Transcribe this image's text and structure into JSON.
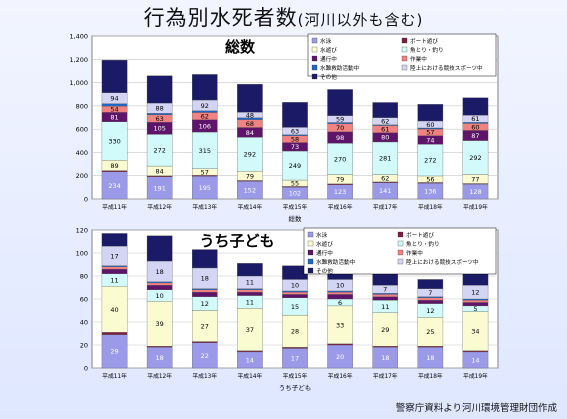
{
  "slide": {
    "title_main": "行為別水死者数",
    "title_sub": "(河川以外も含む)",
    "source": "警察庁資料より河川環境管理財団作成"
  },
  "series_meta": [
    {
      "name": "水泳",
      "color": "#9a9ae8"
    },
    {
      "name": "ボート遊び",
      "color": "#7a1e3e"
    },
    {
      "name": "水遊び",
      "color": "#fbfbd2"
    },
    {
      "name": "魚とり・釣り",
      "color": "#d2fafa"
    },
    {
      "name": "通行中",
      "color": "#5e1469"
    },
    {
      "name": "作業中",
      "color": "#f08282"
    },
    {
      "name": "水難救助活動中",
      "color": "#1e66c8"
    },
    {
      "name": "陸上における競技スポーツ中",
      "color": "#d4d4f4"
    },
    {
      "name": "その他",
      "color": "#1a1a66"
    }
  ],
  "chart_data": [
    {
      "type": "bar",
      "stacked": true,
      "title": "総数",
      "xlabel": "総数",
      "ylim": [
        0,
        1400
      ],
      "yticks": [
        "0",
        "200",
        "400",
        "600",
        "800",
        "1,000",
        "1,200",
        "1,400"
      ],
      "categories": [
        "平成11年",
        "平成12年",
        "平成13年",
        "平成14年",
        "平成15年",
        "平成16年",
        "平成17年",
        "平成18年",
        "平成19年"
      ],
      "series": [
        {
          "name": "水泳",
          "values": [
            234,
            191,
            195,
            152,
            102,
            123,
            141,
            136,
            128
          ]
        },
        {
          "name": "ボート遊び",
          "values": [
            10,
            8,
            8,
            7,
            6,
            7,
            6,
            6,
            5
          ]
        },
        {
          "name": "水遊び",
          "values": [
            89,
            84,
            57,
            79,
            55,
            79,
            62,
            56,
            77
          ]
        },
        {
          "name": "魚とり・釣り",
          "values": [
            330,
            272,
            315,
            292,
            249,
            270,
            281,
            272,
            292
          ]
        },
        {
          "name": "通行中",
          "values": [
            81,
            105,
            106,
            84,
            73,
            98,
            80,
            74,
            87
          ]
        },
        {
          "name": "作業中",
          "values": [
            54,
            63,
            62,
            68,
            58,
            70,
            61,
            57,
            60
          ]
        },
        {
          "name": "水難救助活動中",
          "values": [
            21,
            13,
            15,
            16,
            9,
            10,
            6,
            9,
            10
          ]
        },
        {
          "name": "陸上における競技スポーツ中",
          "values": [
            94,
            88,
            92,
            48,
            63,
            59,
            62,
            60,
            61
          ]
        },
        {
          "name": "その他",
          "values": [
            280,
            235,
            220,
            240,
            215,
            225,
            130,
            143,
            150
          ]
        }
      ],
      "labels": [
        [
          "234",
          "",
          "89",
          "330",
          "81",
          "54",
          "",
          "94",
          ""
        ],
        [
          "191",
          "",
          "84",
          "272",
          "105",
          "63",
          "",
          "88",
          ""
        ],
        [
          "195",
          "",
          "57",
          "315",
          "106",
          "62",
          "",
          "92",
          ""
        ],
        [
          "152",
          "",
          "79",
          "292",
          "84",
          "68",
          "",
          "48",
          ""
        ],
        [
          "102",
          "",
          "55",
          "249",
          "73",
          "58",
          "",
          "63",
          ""
        ],
        [
          "123",
          "",
          "79",
          "270",
          "98",
          "70",
          "",
          "59",
          ""
        ],
        [
          "141",
          "",
          "62",
          "281",
          "80",
          "61",
          "",
          "62",
          ""
        ],
        [
          "136",
          "",
          "56",
          "272",
          "74",
          "57",
          "",
          "60",
          ""
        ],
        [
          "128",
          "",
          "77",
          "292",
          "87",
          "60",
          "",
          "61",
          ""
        ]
      ],
      "legend_position": "top-right"
    },
    {
      "type": "bar",
      "stacked": true,
      "title": "うち子ども",
      "xlabel": "うち子ども",
      "ylim": [
        0,
        120
      ],
      "yticks": [
        "0",
        "20",
        "40",
        "60",
        "80",
        "100",
        "120"
      ],
      "categories": [
        "平成11年",
        "平成12年",
        "平成13年",
        "平成14年",
        "平成15年",
        "平成16年",
        "平成17年",
        "平成18年",
        "平成19年"
      ],
      "series": [
        {
          "name": "水泳",
          "values": [
            29,
            18,
            22,
            14,
            17,
            20,
            18,
            18,
            14
          ]
        },
        {
          "name": "ボート遊び",
          "values": [
            2,
            1,
            1,
            1,
            1,
            1,
            1,
            1,
            1
          ]
        },
        {
          "name": "水遊び",
          "values": [
            40,
            39,
            27,
            37,
            28,
            33,
            29,
            25,
            34
          ]
        },
        {
          "name": "魚とり・釣り",
          "values": [
            11,
            10,
            12,
            11,
            15,
            6,
            11,
            12,
            5
          ]
        },
        {
          "name": "通行中",
          "values": [
            4,
            4,
            4,
            3,
            3,
            4,
            3,
            3,
            3
          ]
        },
        {
          "name": "作業中",
          "values": [
            2,
            2,
            2,
            2,
            2,
            2,
            2,
            2,
            2
          ]
        },
        {
          "name": "水難救助活動中",
          "values": [
            1,
            1,
            1,
            1,
            1,
            1,
            1,
            1,
            1
          ]
        },
        {
          "name": "陸上における競技スポーツ中",
          "values": [
            17,
            18,
            18,
            11,
            10,
            10,
            7,
            7,
            12
          ]
        },
        {
          "name": "その他",
          "values": [
            11,
            22,
            16,
            11,
            12,
            17,
            14,
            8,
            10
          ]
        }
      ],
      "labels": [
        [
          "29",
          "",
          "40",
          "11",
          "",
          "",
          "",
          "17",
          ""
        ],
        [
          "18",
          "",
          "39",
          "10",
          "",
          "",
          "",
          "18",
          ""
        ],
        [
          "22",
          "",
          "27",
          "12",
          "",
          "",
          "",
          "18",
          ""
        ],
        [
          "14",
          "",
          "37",
          "11",
          "",
          "",
          "",
          "11",
          ""
        ],
        [
          "17",
          "",
          "28",
          "15",
          "",
          "",
          "",
          "10",
          ""
        ],
        [
          "20",
          "",
          "33",
          "6",
          "",
          "",
          "",
          "10",
          ""
        ],
        [
          "18",
          "",
          "29",
          "11",
          "",
          "",
          "",
          "7",
          ""
        ],
        [
          "18",
          "",
          "25",
          "12",
          "",
          "",
          "",
          "7",
          ""
        ],
        [
          "14",
          "",
          "34",
          "5",
          "",
          "",
          "",
          "12",
          ""
        ]
      ],
      "legend_position": "top-right"
    }
  ]
}
